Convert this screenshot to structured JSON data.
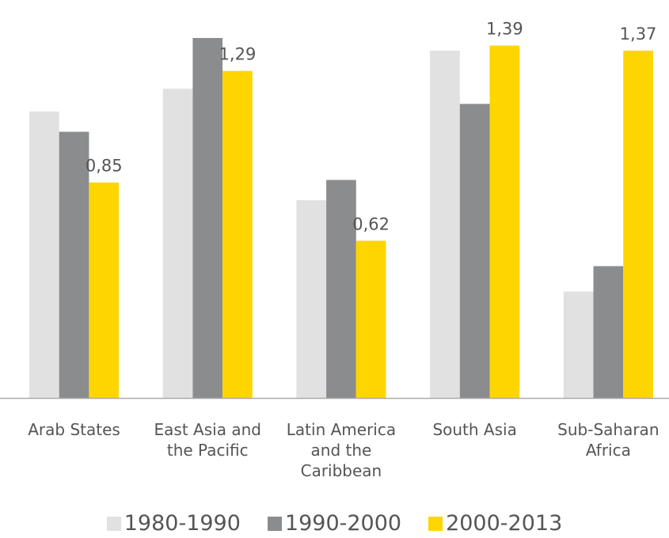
{
  "chart_data": {
    "type": "bar",
    "categories": [
      "Arab States",
      "East Asia and the Pacific",
      "Latin America and the Caribbean",
      "South Asia",
      "Sub-Saharan Africa"
    ],
    "series": [
      {
        "name": "1980-1990",
        "color": "#e1e1e1",
        "values": [
          1.13,
          1.22,
          0.78,
          1.37,
          0.42
        ]
      },
      {
        "name": "1990-2000",
        "color": "#8a8c8e",
        "values": [
          1.05,
          1.42,
          0.86,
          1.16,
          0.52
        ]
      },
      {
        "name": "2000-2013",
        "color": "#ffd500",
        "values": [
          0.85,
          1.29,
          0.62,
          1.39,
          1.37
        ],
        "value_labels": [
          "0,85",
          "1,29",
          "0,62",
          "1,39",
          "1,37"
        ]
      }
    ],
    "legend": "bottom"
  }
}
